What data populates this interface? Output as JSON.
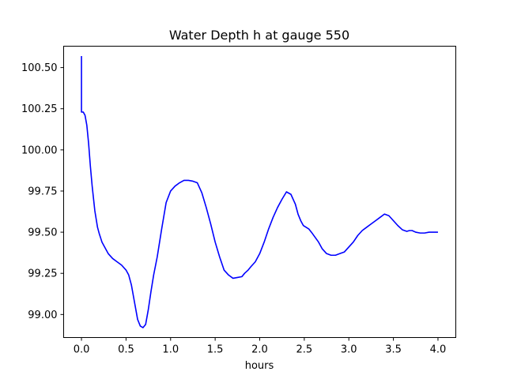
{
  "chart_data": {
    "type": "line",
    "title": "Water Depth h at gauge 550",
    "xlabel": "hours",
    "ylabel": "",
    "xlim": [
      -0.2,
      4.2
    ],
    "ylim": [
      98.86,
      100.63
    ],
    "xticks": [
      0.0,
      0.5,
      1.0,
      1.5,
      2.0,
      2.5,
      3.0,
      3.5,
      4.0
    ],
    "xtick_labels": [
      "0.0",
      "0.5",
      "1.0",
      "1.5",
      "2.0",
      "2.5",
      "3.0",
      "3.5",
      "4.0"
    ],
    "yticks": [
      99.0,
      99.25,
      99.5,
      99.75,
      100.0,
      100.25,
      100.5
    ],
    "ytick_labels": [
      "99.00",
      "99.25",
      "99.50",
      "99.75",
      "100.00",
      "100.25",
      "100.50"
    ],
    "grid": false,
    "series": [
      {
        "color": "#0000ff",
        "x": [
          0.0,
          0.0,
          0.02,
          0.04,
          0.06,
          0.08,
          0.1,
          0.12,
          0.15,
          0.18,
          0.2,
          0.23,
          0.26,
          0.3,
          0.35,
          0.4,
          0.45,
          0.5,
          0.53,
          0.56,
          0.6,
          0.63,
          0.66,
          0.69,
          0.72,
          0.75,
          0.78,
          0.81,
          0.85,
          0.9,
          0.95,
          1.0,
          1.05,
          1.1,
          1.15,
          1.2,
          1.25,
          1.3,
          1.35,
          1.4,
          1.45,
          1.5,
          1.55,
          1.6,
          1.65,
          1.7,
          1.75,
          1.8,
          1.83,
          1.87,
          1.9,
          1.95,
          2.0,
          2.05,
          2.1,
          2.15,
          2.2,
          2.25,
          2.3,
          2.35,
          2.4,
          2.43,
          2.46,
          2.49,
          2.52,
          2.55,
          2.58,
          2.62,
          2.66,
          2.7,
          2.75,
          2.8,
          2.85,
          2.9,
          2.95,
          3.0,
          3.05,
          3.1,
          3.15,
          3.2,
          3.25,
          3.3,
          3.35,
          3.4,
          3.45,
          3.5,
          3.55,
          3.6,
          3.65,
          3.68,
          3.71,
          3.75,
          3.8,
          3.85,
          3.9,
          3.95,
          4.0
        ],
        "y": [
          100.57,
          100.23,
          100.23,
          100.21,
          100.15,
          100.04,
          99.9,
          99.78,
          99.63,
          99.53,
          99.49,
          99.44,
          99.41,
          99.37,
          99.34,
          99.32,
          99.3,
          99.27,
          99.24,
          99.18,
          99.06,
          98.97,
          98.93,
          98.92,
          98.94,
          99.03,
          99.14,
          99.24,
          99.35,
          99.52,
          99.68,
          99.75,
          99.78,
          99.8,
          99.815,
          99.815,
          99.81,
          99.8,
          99.74,
          99.65,
          99.55,
          99.44,
          99.35,
          99.27,
          99.24,
          99.22,
          99.225,
          99.23,
          99.25,
          99.27,
          99.29,
          99.32,
          99.37,
          99.44,
          99.52,
          99.59,
          99.65,
          99.7,
          99.745,
          99.73,
          99.67,
          99.61,
          99.57,
          99.54,
          99.53,
          99.52,
          99.5,
          99.47,
          99.44,
          99.4,
          99.37,
          99.36,
          99.36,
          99.37,
          99.38,
          99.41,
          99.44,
          99.48,
          99.51,
          99.53,
          99.55,
          99.57,
          99.59,
          99.61,
          99.6,
          99.57,
          99.54,
          99.515,
          99.505,
          99.51,
          99.51,
          99.5,
          99.495,
          99.495,
          99.5,
          99.5,
          99.5
        ]
      }
    ]
  }
}
